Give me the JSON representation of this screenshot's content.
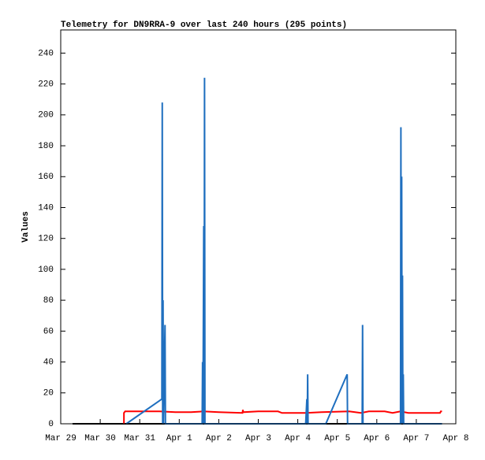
{
  "chart_data": {
    "type": "line",
    "title": "Telemetry for DN9RRA-9 over last 240 hours (295 points)",
    "y_label": "Values",
    "xlim": [
      0,
      10
    ],
    "ylim": [
      0,
      255
    ],
    "xticks": [
      {
        "value": 0,
        "label": "Mar 29"
      },
      {
        "value": 1,
        "label": "Mar 30"
      },
      {
        "value": 2,
        "label": "Mar 31"
      },
      {
        "value": 3,
        "label": "Apr 1"
      },
      {
        "value": 4,
        "label": "Apr 2"
      },
      {
        "value": 5,
        "label": "Apr 3"
      },
      {
        "value": 6,
        "label": "Apr 4"
      },
      {
        "value": 7,
        "label": "Apr 5"
      },
      {
        "value": 8,
        "label": "Apr 6"
      },
      {
        "value": 9,
        "label": "Apr 7"
      },
      {
        "value": 10,
        "label": "Apr 8"
      }
    ],
    "yticks": [
      0,
      20,
      40,
      60,
      80,
      100,
      120,
      140,
      160,
      180,
      200,
      220,
      240
    ],
    "series": [
      {
        "color": "#000000",
        "x": [
          0.3,
          9.65
        ],
        "values": [
          0,
          0
        ]
      },
      {
        "color": "#ff0000",
        "x": [
          1.6,
          1.6,
          1.63,
          2.5,
          2.9,
          3.3,
          3.6,
          4.0,
          4.6,
          4.61,
          4.62,
          5.0,
          5.5,
          5.6,
          6.2,
          6.6,
          7.3,
          7.6,
          7.8,
          8.2,
          8.4,
          8.6,
          8.8,
          9.6,
          9.62,
          9.65
        ],
        "values": [
          0,
          7,
          8,
          8,
          7.5,
          7.5,
          8,
          7.5,
          7,
          9,
          7.5,
          8,
          8,
          7,
          7,
          7.5,
          8,
          7,
          8,
          8,
          7,
          8,
          7,
          7,
          8,
          8
        ]
      },
      {
        "color": "#1f6fbf",
        "x": [
          1.66,
          2.56,
          2.57,
          2.58,
          2.59,
          2.6,
          2.64,
          2.65,
          3.58,
          3.59,
          3.6,
          3.62,
          3.63,
          3.64,
          3.65,
          6.2,
          6.23,
          6.24,
          6.25,
          6.26,
          6.71,
          7.25,
          7.26,
          7.63,
          7.64,
          7.65,
          8.6,
          8.61,
          8.62,
          8.63,
          8.64,
          8.65,
          8.66,
          8.67,
          8.68,
          9.65
        ],
        "values": [
          0,
          16,
          208,
          0,
          80,
          0,
          64,
          0,
          0,
          40,
          0,
          128,
          0,
          224,
          0,
          0,
          16,
          0,
          32,
          0,
          0,
          32,
          0,
          0,
          64,
          0,
          0,
          192,
          0,
          160,
          0,
          96,
          0,
          32,
          0,
          0
        ]
      }
    ]
  }
}
